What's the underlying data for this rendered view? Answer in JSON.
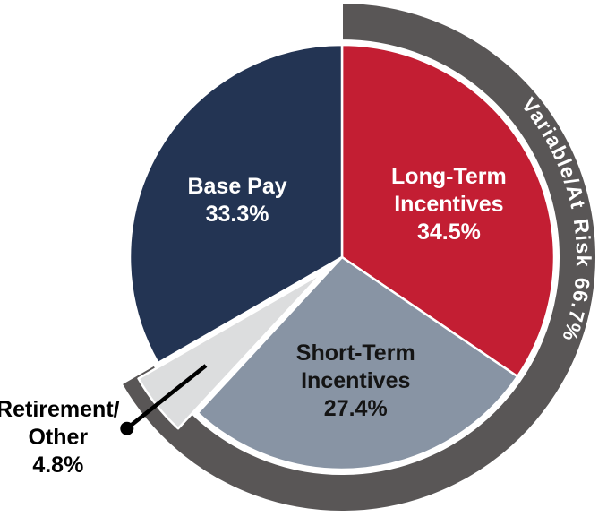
{
  "chart_data": {
    "type": "pie",
    "title": "",
    "start_angle_deg": 0,
    "direction": "clockwise",
    "background": "#FFFFFF",
    "separator_color": "#FFFFFF",
    "slices": [
      {
        "name": "Long-Term Incentives",
        "value": 34.5,
        "color": "#C31E33",
        "text_color": "#FFFFFF",
        "label_lines": [
          "Long-Term",
          "Incentives",
          "34.5%"
        ],
        "exploded": false,
        "external_label": false
      },
      {
        "name": "Short-Term Incentives",
        "value": 27.4,
        "color": "#8894A4",
        "text_color": "#141414",
        "label_lines": [
          "Short-Term",
          "Incentives",
          "27.4%"
        ],
        "exploded": false,
        "external_label": false
      },
      {
        "name": "Retirement/Other",
        "value": 4.8,
        "color": "#DCDDDE",
        "text_color": "#000000",
        "label_lines": [
          "Retirement/",
          "Other",
          "4.8%"
        ],
        "exploded": true,
        "external_label": true,
        "leader_color": "#000000"
      },
      {
        "name": "Base Pay",
        "value": 33.3,
        "color": "#233453",
        "text_color": "#FFFFFF",
        "label_lines": [
          "Base Pay",
          "33.3%"
        ],
        "exploded": false,
        "external_label": false
      }
    ],
    "outer_ring": {
      "label": "Variable/At Risk 66.7%",
      "value": 66.7,
      "color": "#595656",
      "text_color": "#FFFFFF",
      "covers_slices": [
        "Long-Term Incentives",
        "Short-Term Incentives",
        "Retirement/Other"
      ]
    }
  }
}
